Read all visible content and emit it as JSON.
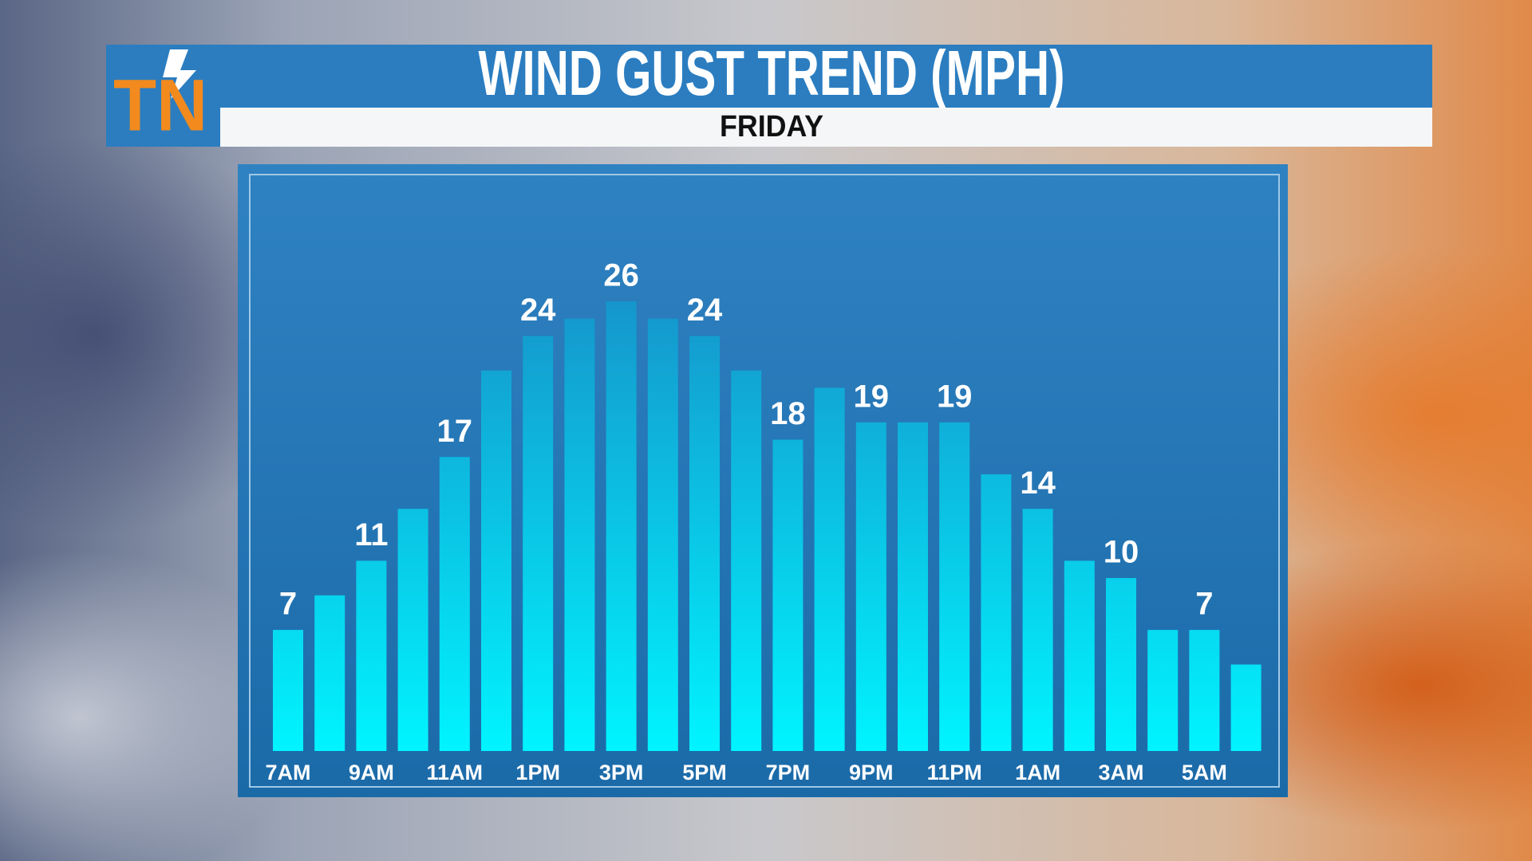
{
  "logo": "TN",
  "chart_data": {
    "type": "bar",
    "title": "WIND GUST TREND (MPH)",
    "subtitle": "FRIDAY",
    "categories": [
      "7AM",
      null,
      "9AM",
      null,
      "11AM",
      null,
      "1PM",
      null,
      "3PM",
      null,
      "5PM",
      null,
      "7PM",
      null,
      "9PM",
      null,
      "11PM",
      null,
      "1AM",
      null,
      "3AM",
      null,
      "5AM",
      null
    ],
    "values": [
      7,
      9,
      11,
      14,
      17,
      22,
      24,
      25,
      26,
      25,
      24,
      22,
      18,
      21,
      19,
      19,
      19,
      16,
      14,
      11,
      10,
      7,
      7,
      5
    ],
    "value_labels": [
      "7",
      null,
      "11",
      null,
      "17",
      null,
      "24",
      null,
      "26",
      null,
      "24",
      null,
      "18",
      null,
      "19",
      null,
      "19",
      null,
      "14",
      null,
      "10",
      null,
      "7",
      null
    ]
  }
}
